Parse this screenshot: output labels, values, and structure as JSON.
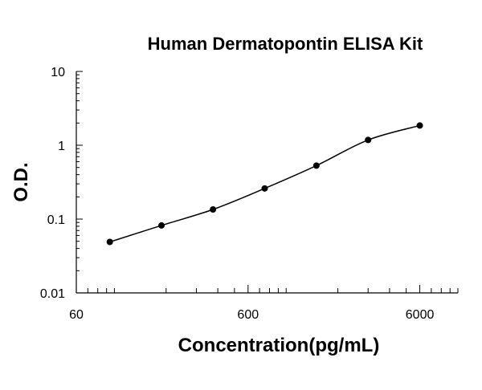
{
  "chart_data": {
    "type": "scatter",
    "title": "Human Dermatopontin ELISA Kit",
    "xlabel": "Concentration(pg/mL)",
    "ylabel": "O.D.",
    "x_scale": "log",
    "y_scale": "log",
    "xlim": [
      60,
      10000
    ],
    "ylim": [
      0.01,
      10
    ],
    "x_ticks": [
      {
        "value": 60,
        "label": "60"
      },
      {
        "value": 600,
        "label": "600"
      },
      {
        "value": 6000,
        "label": "6000"
      }
    ],
    "y_ticks": [
      {
        "value": 0.01,
        "label": "0.01"
      },
      {
        "value": 0.1,
        "label": "0.1"
      },
      {
        "value": 1,
        "label": "1"
      },
      {
        "value": 10,
        "label": "10"
      }
    ],
    "grid": false,
    "legend": "none",
    "series": [
      {
        "x": [
          94,
          188,
          375,
          750,
          1500,
          3000,
          6000
        ],
        "y": [
          0.049,
          0.082,
          0.135,
          0.26,
          0.53,
          1.18,
          1.85
        ],
        "color": "#000000",
        "fit": "smooth curve"
      }
    ]
  }
}
